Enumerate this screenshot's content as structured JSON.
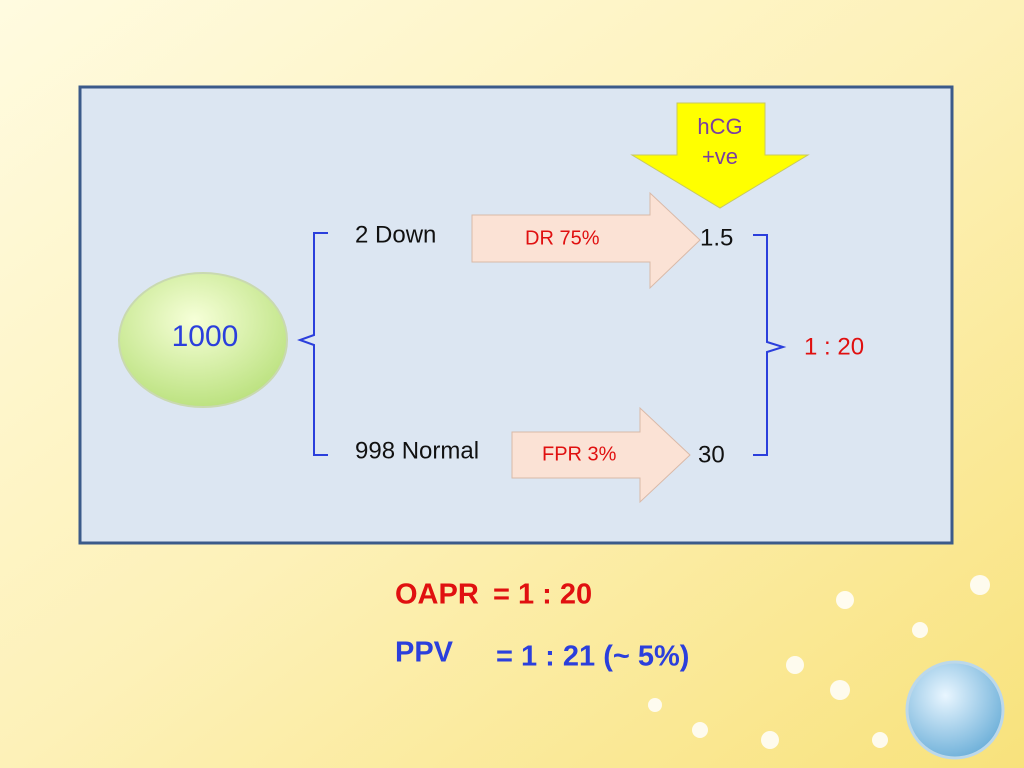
{
  "test": {
    "lines": [
      "hCG",
      "+ve"
    ]
  },
  "total": {
    "label": "1000"
  },
  "groups": [
    {
      "label": "2 Down",
      "rate": "DR 75%",
      "result": "1.5"
    },
    {
      "label": "998 Normal",
      "rate": "FPR 3%",
      "result": "30"
    }
  ],
  "ratio": "1 : 20",
  "summary": [
    {
      "label": "OAPR",
      "value": "= 1 : 20"
    },
    {
      "label": "PPV",
      "value": "= 1 : 21 (~ 5%)"
    }
  ]
}
